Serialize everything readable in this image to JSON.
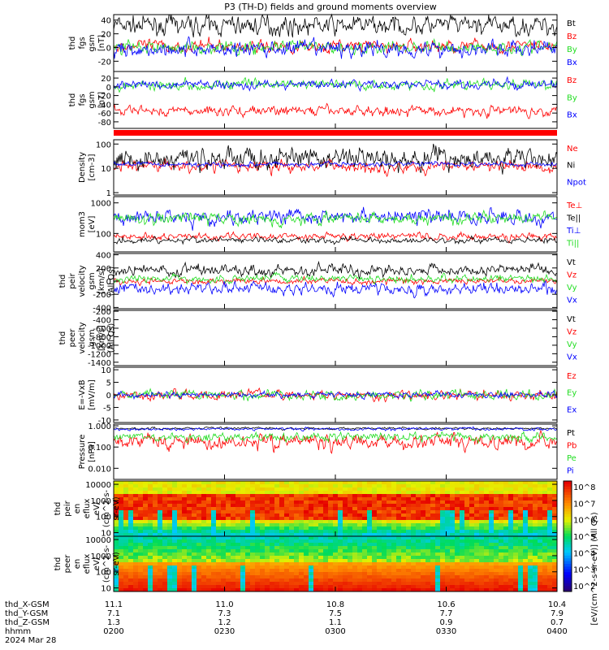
{
  "title": "P3 (TH-D) fields and ground moments overview",
  "colors": {
    "black": "#000000",
    "red": "#ff0000",
    "green": "#22dd22",
    "blue": "#0000ff"
  },
  "chart_data": [
    {
      "type": "line",
      "id": "fgs",
      "ylabel": [
        "thd",
        "fgs",
        "gsm",
        "[nT]"
      ],
      "ylim": [
        -35,
        48
      ],
      "ticks": [
        -20,
        0,
        20,
        40
      ],
      "series": [
        {
          "name": "Bt",
          "color": "black",
          "base": 32,
          "amp": 14
        },
        {
          "name": "Bz",
          "color": "red",
          "base": 2,
          "amp": 9
        },
        {
          "name": "By",
          "color": "green",
          "base": 0,
          "amp": 10
        },
        {
          "name": "Bx",
          "color": "blue",
          "base": -2,
          "amp": 12
        }
      ]
    },
    {
      "type": "line",
      "id": "fgs2",
      "ylabel": [
        "thd",
        "fgs",
        "gsm",
        "[nT]"
      ],
      "ylim": [
        -95,
        35
      ],
      "ticks": [
        -80,
        -60,
        -40,
        -20,
        0,
        20
      ],
      "series": [
        {
          "name": "Bz",
          "color": "red",
          "base": -55,
          "amp": 12
        },
        {
          "name": "By",
          "color": "green",
          "base": 5,
          "amp": 12
        },
        {
          "name": "Bx",
          "color": "blue",
          "base": 5,
          "amp": 10
        }
      ]
    },
    {
      "type": "line",
      "id": "density",
      "log": true,
      "ylabel": [
        "Density",
        "[cm-3]"
      ],
      "ylim": [
        0.8,
        150
      ],
      "ticks": [
        1,
        10,
        100
      ],
      "tick_labels": [
        "1",
        "10",
        "100"
      ],
      "series": [
        {
          "name": "Ne",
          "color": "red",
          "base": 12,
          "amp": 0.25
        },
        {
          "name": "Ni",
          "color": "black",
          "base": 25,
          "amp": 0.45
        },
        {
          "name": "Npot",
          "color": "blue",
          "base": 15,
          "amp": 0.1
        }
      ]
    },
    {
      "type": "line",
      "id": "temp",
      "log": true,
      "ylabel": [
        "mom3",
        "[eV]"
      ],
      "ylim": [
        25,
        1600
      ],
      "ticks": [
        100,
        1000
      ],
      "tick_labels": [
        "100",
        "1000"
      ],
      "series": [
        {
          "name": "Te⊥",
          "color": "red",
          "base": 80,
          "amp": 0.12
        },
        {
          "name": "Te||",
          "color": "black",
          "base": 60,
          "amp": 0.1
        },
        {
          "name": "Ti⊥",
          "color": "blue",
          "base": 350,
          "amp": 0.25
        },
        {
          "name": "Ti||",
          "color": "green",
          "base": 300,
          "amp": 0.2
        }
      ]
    },
    {
      "type": "line",
      "id": "vpeir",
      "ylabel": [
        "thd",
        "peir",
        "velocity",
        "gsm",
        "[km/s]",
        "(All Qs)"
      ],
      "ylim": [
        -420,
        420
      ],
      "ticks": [
        -400,
        -200,
        0,
        200,
        400
      ],
      "series": [
        {
          "name": "Vt",
          "color": "black",
          "base": 170,
          "amp": 80
        },
        {
          "name": "Vz",
          "color": "red",
          "base": 0,
          "amp": 50
        },
        {
          "name": "Vy",
          "color": "green",
          "base": 40,
          "amp": 60
        },
        {
          "name": "Vx",
          "color": "blue",
          "base": -120,
          "amp": 90
        }
      ]
    },
    {
      "type": "line",
      "id": "vpeer",
      "ylabel": [
        "thd",
        "peer",
        "velocity",
        "gsm",
        "[km/s]",
        "(All Qs)"
      ],
      "ylim": [
        -1480,
        -180
      ],
      "ticks": [
        -1400,
        -1200,
        -1000,
        -800,
        -600,
        -400,
        -200
      ],
      "series": [
        {
          "name": "Vt",
          "color": "black"
        },
        {
          "name": "Vz",
          "color": "red"
        },
        {
          "name": "Vy",
          "color": "green"
        },
        {
          "name": "Vx",
          "color": "blue"
        }
      ]
    },
    {
      "type": "line",
      "id": "efield",
      "ylabel": [
        "E=-VxB",
        "[mV/m]"
      ],
      "ylim": [
        -11,
        11
      ],
      "ticks": [
        -10,
        -5,
        0,
        5,
        10
      ],
      "series": [
        {
          "name": "Ez",
          "color": "red",
          "base": 0,
          "amp": 2
        },
        {
          "name": "Ey",
          "color": "green",
          "base": 0,
          "amp": 2
        },
        {
          "name": "Ex",
          "color": "blue",
          "base": 0,
          "amp": 1.2
        }
      ]
    },
    {
      "type": "line",
      "id": "pressure",
      "log": true,
      "ylabel": [
        "Pressure",
        "[nPa]"
      ],
      "ylim": [
        0.003,
        1.2
      ],
      "ticks": [
        0.01,
        0.1,
        1
      ],
      "tick_labels": [
        "0.010",
        "0.100",
        "1.000"
      ],
      "series": [
        {
          "name": "Pt",
          "color": "black",
          "base": 0.75,
          "amp": 0.06
        },
        {
          "name": "Pb",
          "color": "red",
          "base": 0.18,
          "amp": 0.35
        },
        {
          "name": "Pe",
          "color": "green",
          "base": 0.3,
          "amp": 0.2
        },
        {
          "name": "Pi",
          "color": "blue",
          "base": 0.7,
          "amp": 0.07
        }
      ]
    },
    {
      "type": "heatmap",
      "id": "peir_flux",
      "ylabel": [
        "thd",
        "peir",
        "en",
        "eflux",
        "eV/",
        "(cm^2-s-",
        "sr-eV)"
      ],
      "log": true,
      "ylim": [
        6,
        16000
      ],
      "ticks": [
        10,
        100,
        1000,
        10000
      ],
      "tick_labels": [
        "10",
        "100",
        "1000",
        "10000"
      ]
    },
    {
      "type": "heatmap",
      "id": "peer_flux",
      "ylabel": [
        "thd",
        "peer",
        "en",
        "eflux",
        "eV/",
        "(cm^2-s-",
        "sr-eV)"
      ],
      "log": true,
      "ylim": [
        6,
        16000
      ],
      "ticks": [
        10,
        100,
        1000,
        10000
      ],
      "tick_labels": [
        "10",
        "100",
        "1000",
        "10000"
      ]
    }
  ],
  "colorbar": {
    "labels": [
      "10^8",
      "10^7",
      "10^6",
      "10^5",
      "10^4",
      "10^3",
      "10^2"
    ],
    "title": "[eV/(cm^2-s-sr-eV)] (All Qs)"
  },
  "footer": {
    "rows": [
      {
        "label": "thd_X-GSM",
        "values": [
          "11.1",
          "11.0",
          "10.8",
          "10.6",
          "10.4"
        ]
      },
      {
        "label": "thd_Y-GSM",
        "values": [
          "7.1",
          "7.3",
          "7.5",
          "7.7",
          "7.9"
        ]
      },
      {
        "label": "thd_Z-GSM",
        "values": [
          "1.3",
          "1.2",
          "1.1",
          "0.9",
          "0.7"
        ]
      },
      {
        "label": "hhmm",
        "values": [
          "0200",
          "0230",
          "0300",
          "0330",
          "0400"
        ]
      }
    ],
    "date": "2024 Mar 28"
  }
}
